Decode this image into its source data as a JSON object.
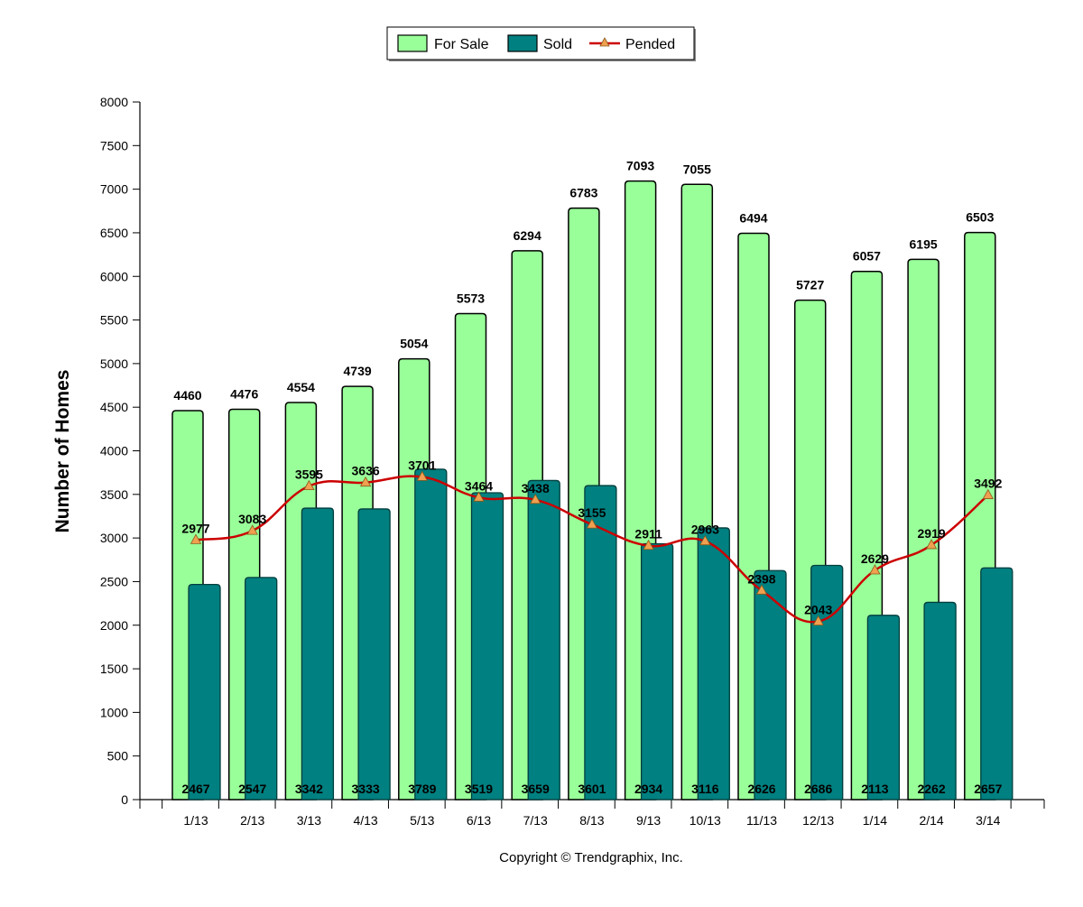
{
  "chart_data": {
    "type": "bar",
    "ylabel": "Number of Homes",
    "xlabel": "",
    "ylim": [
      0,
      8000
    ],
    "yticks": [
      0,
      500,
      1000,
      1500,
      2000,
      2500,
      3000,
      3500,
      4000,
      4500,
      5000,
      5500,
      6000,
      6500,
      7000,
      7500,
      8000
    ],
    "categories": [
      "1/13",
      "2/13",
      "3/13",
      "4/13",
      "5/13",
      "6/13",
      "7/13",
      "8/13",
      "9/13",
      "10/13",
      "11/13",
      "12/13",
      "1/14",
      "2/14",
      "3/14"
    ],
    "series": [
      {
        "name": "For Sale",
        "kind": "bar",
        "color": "#99ff99",
        "values": [
          4460,
          4476,
          4554,
          4739,
          5054,
          5573,
          6294,
          6783,
          7093,
          7055,
          6494,
          5727,
          6057,
          6195,
          6503
        ]
      },
      {
        "name": "Sold",
        "kind": "bar",
        "color": "#008080",
        "values": [
          2467,
          2547,
          3342,
          3333,
          3789,
          3519,
          3659,
          3601,
          2934,
          3116,
          2626,
          2686,
          2113,
          2262,
          2657
        ]
      },
      {
        "name": "Pended",
        "kind": "line",
        "color": "#cc0000",
        "marker_color": "#f0a050",
        "values": [
          2977,
          3083,
          3595,
          3636,
          3701,
          3464,
          3438,
          3155,
          2911,
          2963,
          2398,
          2043,
          2629,
          2919,
          3492
        ]
      }
    ],
    "legend_position": "top-center",
    "grid": false
  },
  "legend": {
    "for_sale": "For Sale",
    "sold": "Sold",
    "pended": "Pended"
  },
  "footer": {
    "copyright": "Copyright © Trendgraphix, Inc."
  }
}
